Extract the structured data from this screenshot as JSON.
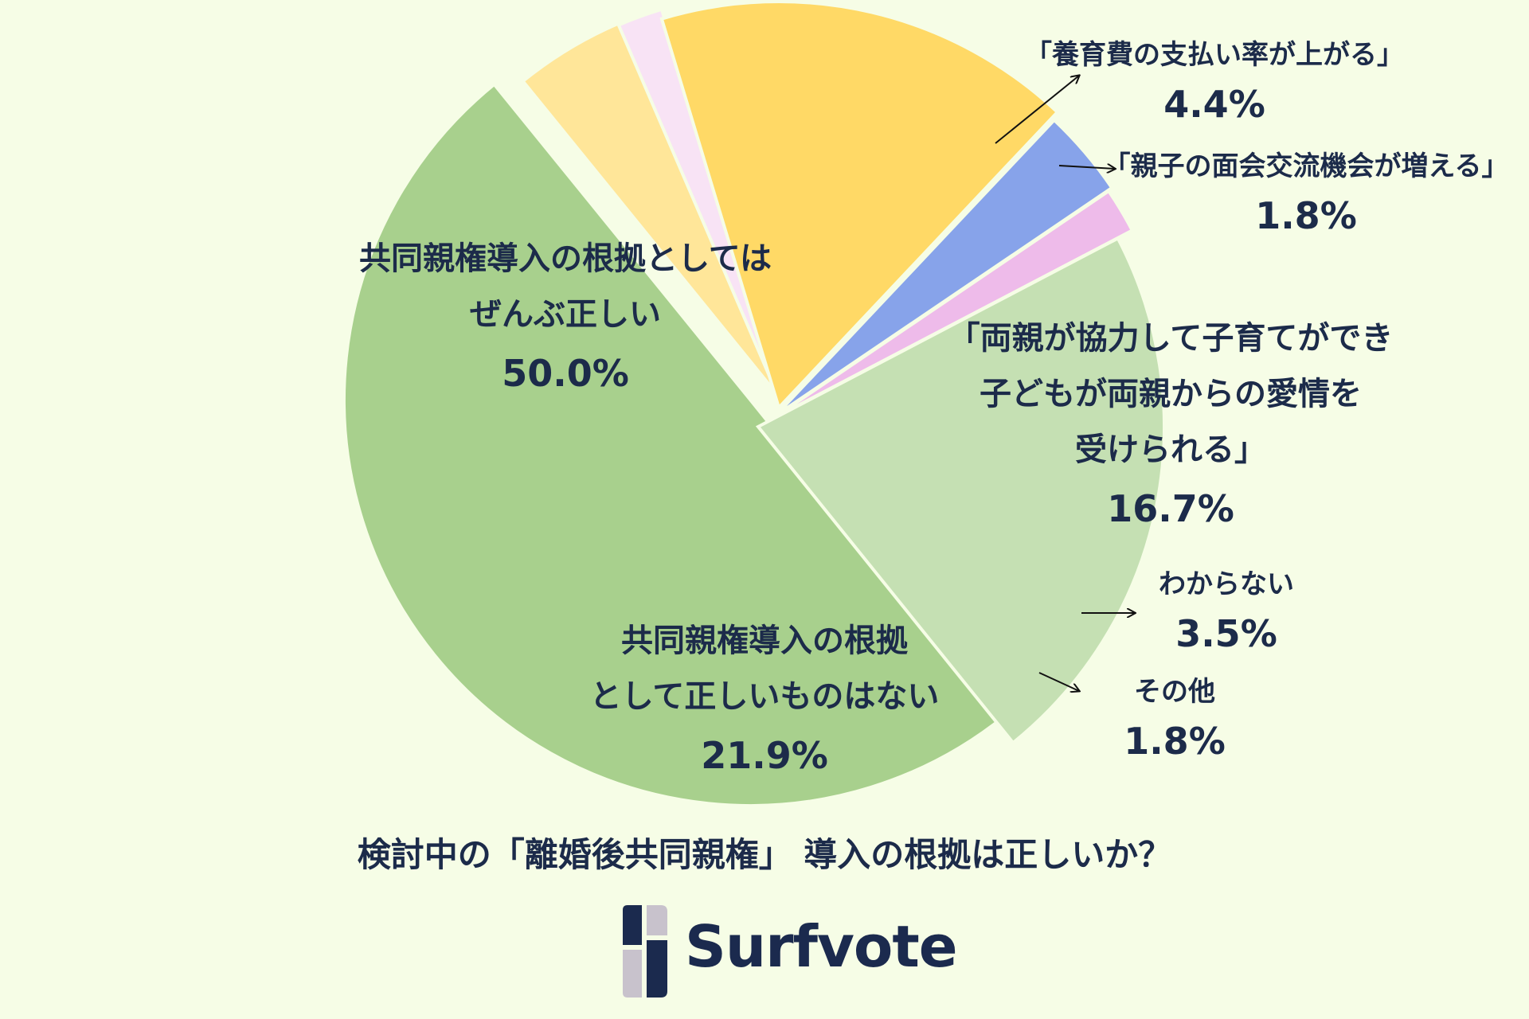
{
  "chart_data": {
    "type": "pie",
    "title": "検討中の「離婚後共同親権」 導入の根拠は正しいか？",
    "slices": [
      {
        "label": [
          "共同親権導入の根拠としては",
          "ぜんぶ正しい"
        ],
        "value": 50.0,
        "value_text": "50.0%",
        "color": "#a8d08d"
      },
      {
        "label": [
          "「養育費の支払い率が上がる」"
        ],
        "value": 4.4,
        "value_text": "4.4%",
        "color": "#ffe699"
      },
      {
        "label": [
          "「親子の面会交流機会が増える」"
        ],
        "value": 1.8,
        "value_text": "1.8%",
        "color": "#f8e3f5"
      },
      {
        "label": [
          "「両親が協力して子育てができ",
          "子どもが両親からの愛情を",
          "受けられる」"
        ],
        "value": 16.7,
        "value_text": "16.7%",
        "color": "#ffd966"
      },
      {
        "label": [
          "わからない"
        ],
        "value": 3.5,
        "value_text": "3.5%",
        "color": "#87a3ea"
      },
      {
        "label": [
          "その他"
        ],
        "value": 1.8,
        "value_text": "1.8%",
        "color": "#eebbea"
      },
      {
        "label": [
          "共同親権導入の根拠",
          "として正しいものはない"
        ],
        "value": 21.9,
        "value_text": "21.9%",
        "color": "#c5e0b3"
      }
    ]
  },
  "brand": {
    "name": "Surfvote",
    "colors": {
      "navy": "#1b2a4e",
      "gray": "#c8c2cc"
    }
  }
}
